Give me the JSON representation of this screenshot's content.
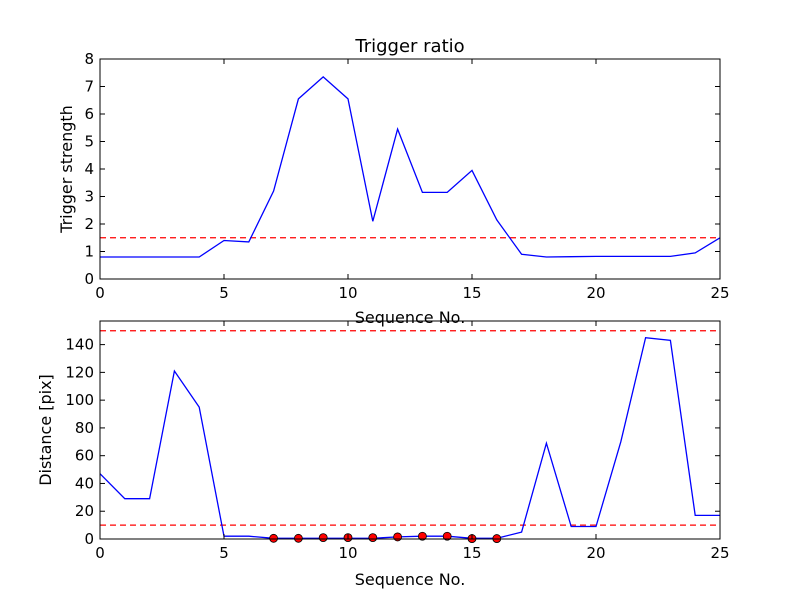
{
  "chart_data": [
    {
      "type": "line",
      "title": "Trigger ratio",
      "xlabel": "Sequence No.",
      "ylabel": "Trigger strength",
      "xlim": [
        0,
        25
      ],
      "ylim": [
        0,
        8
      ],
      "xticks": [
        0,
        5,
        10,
        15,
        20,
        25
      ],
      "yticks": [
        0,
        1,
        2,
        3,
        4,
        5,
        6,
        7,
        8
      ],
      "grid": false,
      "series": [
        {
          "color": "#0000ff",
          "style": "solid",
          "x": [
            0,
            1,
            2,
            3,
            4,
            5,
            6,
            7,
            8,
            9,
            10,
            11,
            12,
            13,
            14,
            15,
            16,
            17,
            18,
            19,
            20,
            21,
            22,
            23,
            24,
            25
          ],
          "y": [
            0.8,
            0.8,
            0.8,
            0.8,
            0.8,
            1.4,
            1.35,
            3.2,
            6.55,
            7.35,
            6.55,
            2.1,
            5.45,
            3.15,
            3.15,
            3.95,
            2.15,
            0.9,
            0.8,
            0.81,
            0.82,
            0.82,
            0.82,
            0.82,
            0.95,
            1.5
          ]
        }
      ],
      "hlines": [
        {
          "y": 1.5,
          "color": "#ff0000",
          "style": "dashed"
        }
      ]
    },
    {
      "type": "line",
      "title": "",
      "xlabel": "Sequence No.",
      "ylabel": "Distance [pix]",
      "xlim": [
        0,
        25
      ],
      "ylim": [
        0,
        157
      ],
      "xticks": [
        0,
        5,
        10,
        15,
        20,
        25
      ],
      "yticks": [
        0,
        20,
        40,
        60,
        80,
        100,
        120,
        140
      ],
      "grid": false,
      "series": [
        {
          "color": "#0000ff",
          "style": "solid",
          "x": [
            0,
            1,
            2,
            3,
            4,
            5,
            6,
            7,
            8,
            9,
            10,
            11,
            12,
            13,
            14,
            15,
            16,
            17,
            18,
            19,
            20,
            21,
            22,
            23,
            24,
            25
          ],
          "y": [
            47,
            29,
            29,
            121,
            95,
            2,
            2,
            0.5,
            0.5,
            0.5,
            0.5,
            0.5,
            1.5,
            2,
            2,
            0.5,
            0.5,
            5,
            69,
            9,
            9,
            70,
            145,
            143,
            17,
            17
          ]
        },
        {
          "color": "#ff0000",
          "style": "markers",
          "x": [
            7,
            8,
            9,
            10,
            11,
            12,
            13,
            14,
            15,
            16
          ],
          "y": [
            0.5,
            0.5,
            1,
            1,
            1,
            1.5,
            2,
            2,
            0.3,
            0.3
          ]
        }
      ],
      "hlines": [
        {
          "y": 150,
          "color": "#ff0000",
          "style": "dashed"
        },
        {
          "y": 10,
          "color": "#ff0000",
          "style": "dashed"
        }
      ]
    }
  ]
}
